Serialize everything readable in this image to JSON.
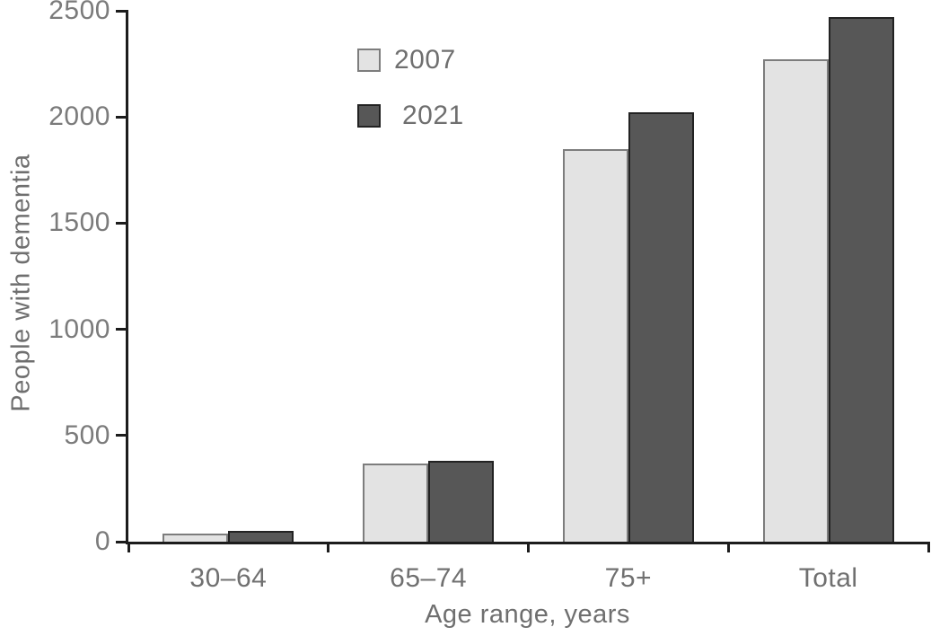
{
  "chart_data": {
    "type": "bar",
    "title": "",
    "xlabel": "Age range, years",
    "ylabel": "People with dementia",
    "categories": [
      "30–64",
      "65–74",
      "75+",
      "Total"
    ],
    "series": [
      {
        "name": "2007",
        "color": "#e3e3e3",
        "border_color": "#7d7d7d",
        "values": [
          40,
          370,
          1850,
          2270
        ]
      },
      {
        "name": "2021",
        "color": "#575757",
        "border_color": "#222222",
        "values": [
          50,
          380,
          2020,
          2470
        ]
      }
    ],
    "ylim": [
      0,
      2500
    ],
    "y_ticks": [
      0,
      500,
      1000,
      1500,
      2000,
      2500
    ],
    "grid": false,
    "legend_position": "inside-top-center-left"
  },
  "colors": {
    "axis": "#1c1c1c",
    "text": "#6f6f6f",
    "background": "#ffffff"
  }
}
